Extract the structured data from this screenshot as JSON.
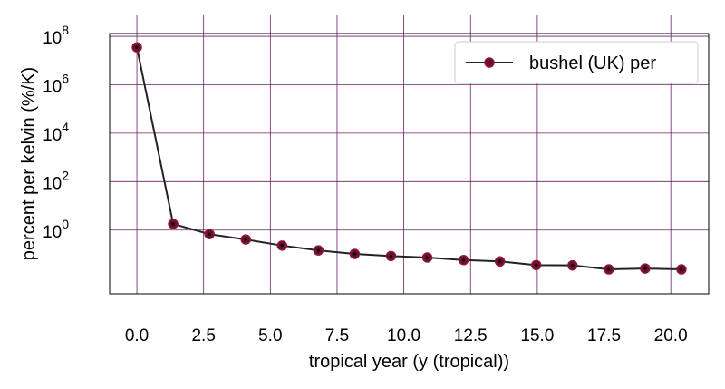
{
  "chart_data": {
    "type": "line",
    "title": "",
    "xlabel": "tropical year (y (tropical))",
    "ylabel": "percent per kelvin (%/K)",
    "xlim": [
      -1.02,
      21.42
    ],
    "ylim": [
      0.00235,
      130000000
    ],
    "yscale": "log",
    "grid": true,
    "legend_position": "top-right",
    "x_ticks": [
      0.0,
      2.5,
      5.0,
      7.5,
      10.0,
      12.5,
      15.0,
      17.5,
      20.0
    ],
    "x_tick_labels": [
      "0.0",
      "2.5",
      "5.0",
      "7.5",
      "10.0",
      "12.5",
      "15.0",
      "17.5",
      "20.0"
    ],
    "y_ticks": [
      {
        "value": 1,
        "base": "10",
        "exp": "0"
      },
      {
        "value": 100,
        "base": "10",
        "exp": "2"
      },
      {
        "value": 10000,
        "base": "10",
        "exp": "4"
      },
      {
        "value": 1000000,
        "base": "10",
        "exp": "6"
      },
      {
        "value": 100000000,
        "base": "10",
        "exp": "8"
      }
    ],
    "series": [
      {
        "name": "bushel (UK) per",
        "color": "#222222",
        "marker_face": "#6b0f2a",
        "marker_edge": "#8b1a3a",
        "x": [
          0.0,
          1.36,
          2.72,
          4.08,
          5.44,
          6.8,
          8.16,
          9.52,
          10.88,
          12.24,
          13.6,
          14.96,
          16.32,
          17.68,
          19.04,
          20.4
        ],
        "y": [
          35000000,
          1.8,
          0.68,
          0.41,
          0.23,
          0.145,
          0.104,
          0.085,
          0.074,
          0.058,
          0.051,
          0.036,
          0.035,
          0.024,
          0.026,
          0.024
        ]
      }
    ],
    "legend_labels": [
      "bushel (UK) per"
    ]
  },
  "colors": {
    "grid": "#6b1f6b",
    "axes": "#000000",
    "background": "#ffffff"
  }
}
